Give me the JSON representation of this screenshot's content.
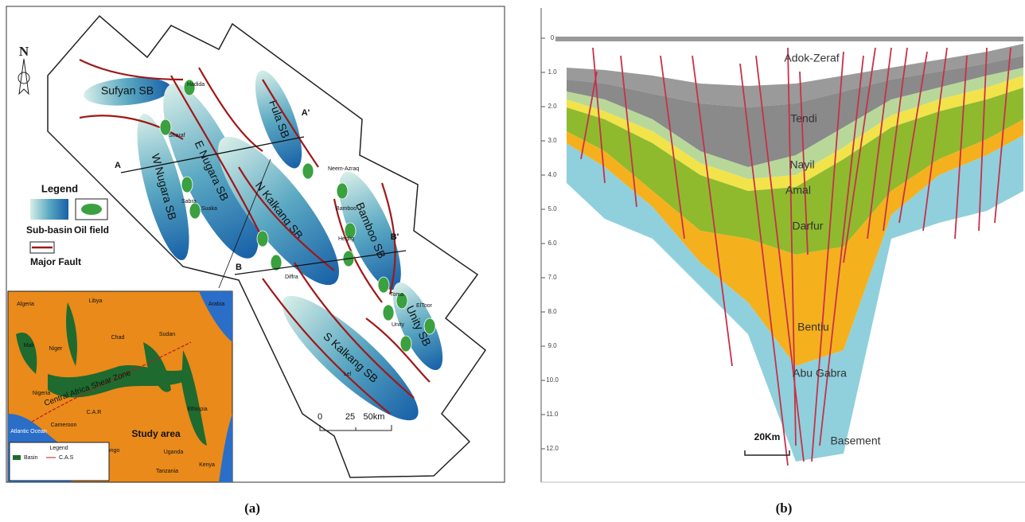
{
  "panel_a": {
    "caption": "(a)",
    "north": "N",
    "basins": [
      "Sufyan SB",
      "W Nugara SB",
      "E Nugara SB",
      "Fula SB",
      "N Kalkang SB",
      "Bamboo SB",
      "S Kalkang SB",
      "Unity SB"
    ],
    "oil_fields": [
      "Hadida",
      "Sharaf",
      "Sabra",
      "Suaka",
      "Neem-Azraq",
      "Bamboo",
      "Heglig",
      "Diffra",
      "Toma",
      "ElToor",
      "Unity",
      "Lel"
    ],
    "section_points": [
      "A",
      "A'",
      "B",
      "B'"
    ],
    "legend": {
      "title": "Legend",
      "sub_basin": "Sub-basin",
      "oil_field": "Oil field",
      "major_fault": "Major Fault"
    },
    "scale": [
      "0",
      "25",
      "50km"
    ],
    "inset": {
      "countries": [
        "Algeria",
        "Libya",
        "Arabia",
        "Mali",
        "Niger",
        "Chad",
        "Sudan",
        "Nigeria",
        "C.A.R",
        "Ethiopia",
        "Cameroon",
        "Congo",
        "Uganda",
        "Kenya",
        "Tanzania"
      ],
      "shear_zone": "Central Africa Shear Zone",
      "study_area": "Study area",
      "ocean": "Atlantic Ocean",
      "legend": {
        "title": "Legend",
        "items": [
          "Basin",
          "C.A.S"
        ]
      }
    }
  },
  "panel_b": {
    "caption": "(b)",
    "depth_ticks": [
      "0",
      "1.0",
      "2.0",
      "3.0",
      "4.0",
      "5.0",
      "6.0",
      "7.0",
      "8.0",
      "9.0",
      "10.0",
      "11.0",
      "12.0"
    ],
    "formations": [
      "Adok-Zeraf",
      "Tendi",
      "Nayil",
      "Amal",
      "Darfur",
      "Bentiu",
      "Abu Gabra",
      "Basement"
    ],
    "scale": "20Km"
  }
}
